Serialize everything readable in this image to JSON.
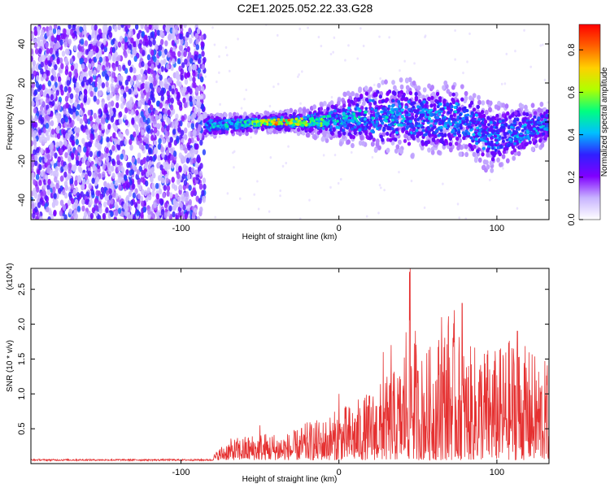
{
  "title": "C2E1.2025.052.22.33.G28",
  "colors": {
    "signal": "#e53030",
    "frame": "#000000"
  },
  "chart_data": [
    {
      "type": "heatmap",
      "xlabel": "Height of straight line (km)",
      "ylabel": "Frequency (Hz)",
      "xlim": [
        -195,
        133
      ],
      "ylim": [
        -50,
        50
      ],
      "xticks": [
        -100,
        0,
        100
      ],
      "yticks": [
        -40,
        -20,
        0,
        20,
        40
      ],
      "xtick_labels": [
        "-100",
        "0",
        "100"
      ],
      "ytick_labels": [
        "-40",
        "-20",
        "0",
        "20",
        "40"
      ],
      "colorbar": {
        "label": "Normalized spectral amplitude",
        "range": [
          0,
          0.92
        ],
        "ticks": [
          0.0,
          0.2,
          0.4,
          0.6,
          0.8
        ],
        "tick_labels": [
          "0.0",
          "0.2",
          "0.4",
          "0.6",
          "0.8"
        ],
        "colormap": [
          "#ffffff",
          "#c8b4ff",
          "#8000ff",
          "#3020ff",
          "#00c0ff",
          "#00ff80",
          "#b0ff00",
          "#ffd000",
          "#ff6000",
          "#ff0000"
        ]
      },
      "noise_region": {
        "x": [
          -195,
          -85
        ],
        "amplitude": [
          0.08,
          0.35
        ]
      },
      "signal_track": [
        {
          "x": -85,
          "center": -2,
          "width": 6,
          "peak": 0.45
        },
        {
          "x": -60,
          "center": -1,
          "width": 5,
          "peak": 0.55
        },
        {
          "x": -40,
          "center": 0,
          "width": 5,
          "peak": 0.9
        },
        {
          "x": -20,
          "center": 0,
          "width": 7,
          "peak": 0.7
        },
        {
          "x": 0,
          "center": 1,
          "width": 12,
          "peak": 0.5
        },
        {
          "x": 20,
          "center": 3,
          "width": 18,
          "peak": 0.5
        },
        {
          "x": 50,
          "center": 2,
          "width": 20,
          "peak": 0.45
        },
        {
          "x": 80,
          "center": 1,
          "width": 18,
          "peak": 0.45
        },
        {
          "x": 95,
          "center": -8,
          "width": 18,
          "peak": 0.4
        },
        {
          "x": 133,
          "center": -1,
          "width": 10,
          "peak": 0.45
        }
      ]
    },
    {
      "type": "line",
      "xlabel": "Height of straight line (km)",
      "ylabel": "SNR (10 * v/v)",
      "yscale_label": "(x10^4)",
      "xlim": [
        -195,
        133
      ],
      "ylim": [
        0,
        2.8
      ],
      "xticks": [
        -100,
        0,
        100
      ],
      "yticks": [
        0.5,
        1.0,
        1.5,
        2.0,
        2.5
      ],
      "xtick_labels": [
        "-100",
        "0",
        "100"
      ],
      "ytick_labels": [
        "0.5",
        "1.0",
        "1.5",
        "2.0",
        "2.5"
      ],
      "series": [
        {
          "envelope_x": [
            -195,
            -80,
            -75,
            -70,
            -60,
            -50,
            -40,
            -30,
            -20,
            -10,
            0,
            10,
            20,
            30,
            40,
            45,
            50,
            60,
            70,
            80,
            90,
            100,
            110,
            120,
            133
          ],
          "envelope_y": [
            0.05,
            0.06,
            0.2,
            0.3,
            0.35,
            0.4,
            0.4,
            0.4,
            0.55,
            0.6,
            0.75,
            0.85,
            1.0,
            1.2,
            1.4,
            2.8,
            1.5,
            1.7,
            2.2,
            1.6,
            1.7,
            1.6,
            1.8,
            1.6,
            1.4
          ],
          "spikes": [
            {
              "x": 45,
              "y": 2.8
            },
            {
              "x": 78,
              "y": 2.3
            },
            {
              "x": 73,
              "y": 2.2
            },
            {
              "x": 65,
              "y": 2.1
            },
            {
              "x": 28,
              "y": 1.6
            },
            {
              "x": 33,
              "y": 1.7
            },
            {
              "x": 113,
              "y": 1.9
            },
            {
              "x": -50,
              "y": 0.55
            },
            {
              "x": 0,
              "y": 1.0
            }
          ]
        }
      ]
    }
  ]
}
